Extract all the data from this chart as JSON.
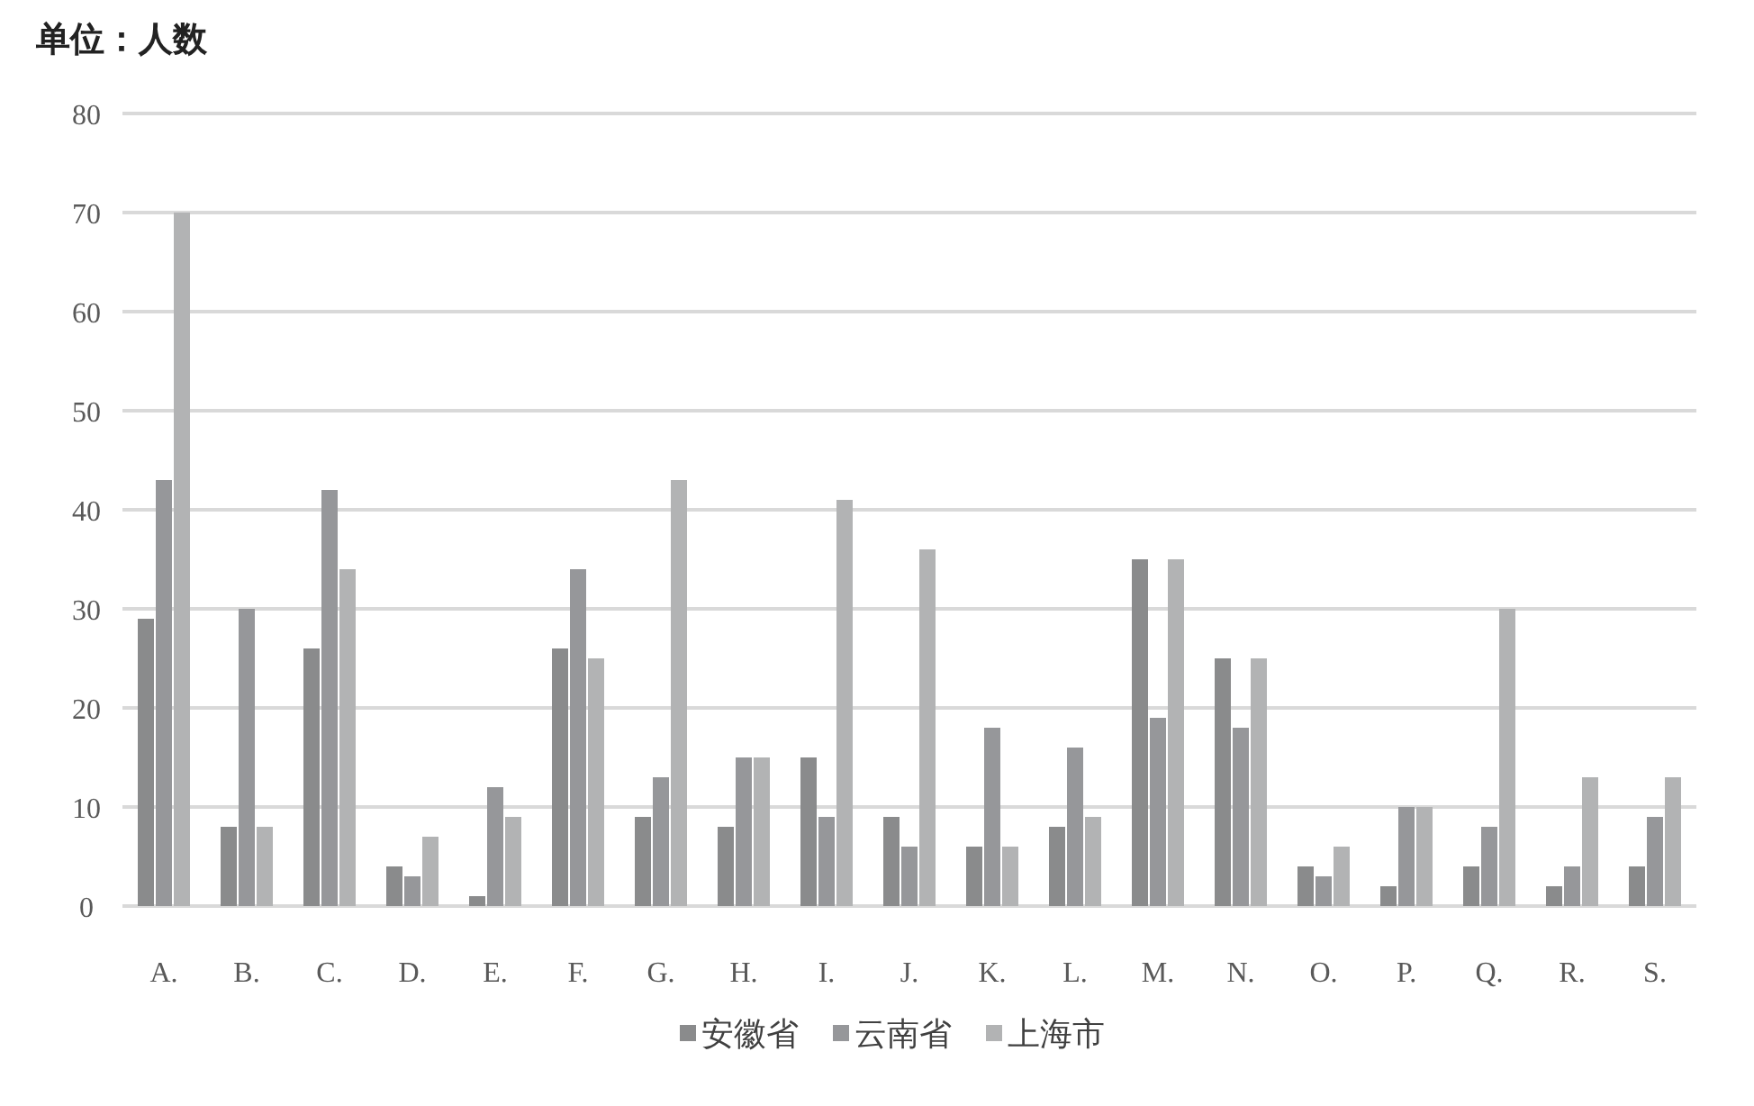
{
  "chart_data": {
    "type": "bar",
    "title": "单位：人数",
    "categories": [
      "A.",
      "B.",
      "C.",
      "D.",
      "E.",
      "F.",
      "G.",
      "H.",
      "I.",
      "J.",
      "K.",
      "L.",
      "M.",
      "N.",
      "O.",
      "P.",
      "Q.",
      "R.",
      "S."
    ],
    "series": [
      {
        "name": "安徽省",
        "color": "#8a8b8c",
        "values": [
          29,
          8,
          26,
          4,
          1,
          26,
          9,
          8,
          15,
          9,
          6,
          8,
          35,
          25,
          4,
          2,
          4,
          2,
          4
        ]
      },
      {
        "name": "云南省",
        "color": "#96979a",
        "values": [
          43,
          30,
          42,
          3,
          12,
          34,
          13,
          15,
          9,
          6,
          18,
          16,
          19,
          18,
          3,
          10,
          8,
          4,
          9
        ]
      },
      {
        "name": "上海市",
        "color": "#b2b3b4",
        "values": [
          70,
          8,
          34,
          7,
          9,
          25,
          43,
          15,
          41,
          36,
          6,
          9,
          35,
          25,
          6,
          10,
          30,
          13,
          13
        ]
      }
    ],
    "ylim": [
      0,
      80
    ],
    "yticks": [
      0,
      10,
      20,
      30,
      40,
      50,
      60,
      70,
      80
    ],
    "grid": "y",
    "legend": "bottom"
  }
}
